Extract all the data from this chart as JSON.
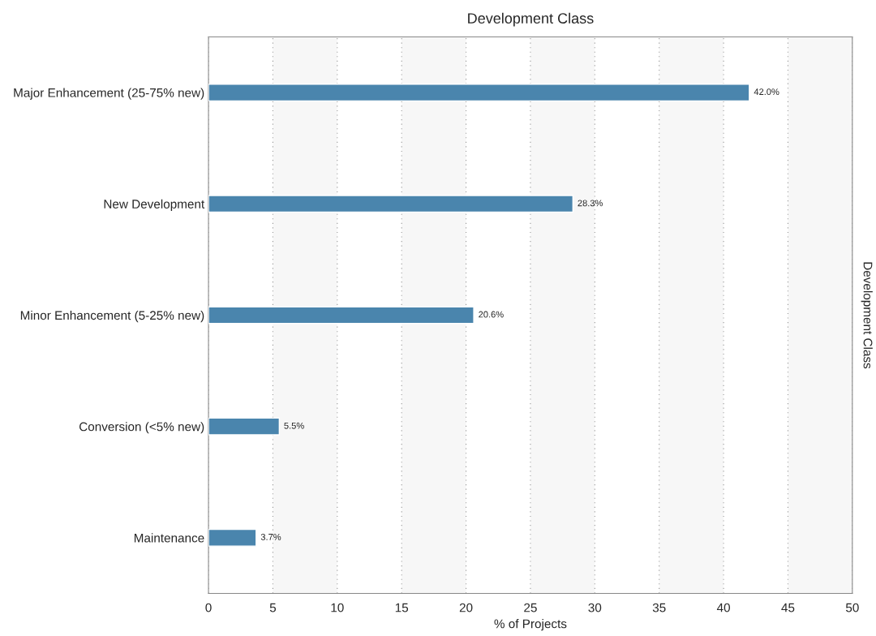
{
  "chart_data": {
    "type": "bar",
    "orientation": "horizontal",
    "title": "Development Class",
    "xlabel": "% of Projects",
    "ylabel": "Development Class",
    "categories": [
      "Major Enhancement (25-75% new)",
      "New Development",
      "Minor Enhancement (5-25% new)",
      "Conversion (<5% new)",
      "Maintenance"
    ],
    "values": [
      42.0,
      28.3,
      20.6,
      5.5,
      3.7
    ],
    "color": "#4a85ad",
    "value_labels": [
      "42.0%",
      "28.3%",
      "20.6%",
      "5.5%",
      "3.7%"
    ],
    "xlim": [
      0,
      50
    ],
    "xticks": [
      0,
      5,
      10,
      15,
      20,
      25,
      30,
      35,
      40,
      45,
      50
    ],
    "grid": "x",
    "bands": [
      {
        "axis": "x",
        "from": 5,
        "to": 10,
        "color": "#f7f7f7"
      },
      {
        "axis": "x",
        "from": 15,
        "to": 20,
        "color": "#f7f7f7"
      },
      {
        "axis": "x",
        "from": 25,
        "to": 30,
        "color": "#f7f7f7"
      },
      {
        "axis": "x",
        "from": 35,
        "to": 40,
        "color": "#f7f7f7"
      },
      {
        "axis": "x",
        "from": 45,
        "to": 50,
        "color": "#f7f7f7"
      }
    ]
  }
}
